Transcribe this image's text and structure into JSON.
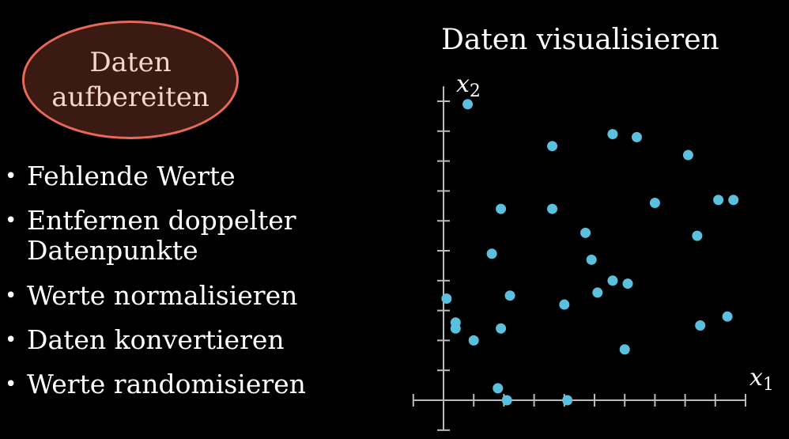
{
  "badge": {
    "line1": "Daten",
    "line2": "aufbereiten",
    "border_color": "#e8685a",
    "fill_color": "#3a1a13"
  },
  "bullets": [
    {
      "label": "Fehlende Werte"
    },
    {
      "label": "Entfernen doppelter",
      "label2": "Datenpunkte"
    },
    {
      "label": "Werte normalisieren"
    },
    {
      "label": "Daten konvertieren"
    },
    {
      "label": "Werte randomisieren"
    }
  ],
  "chart_data": {
    "type": "scatter",
    "title": "Daten visualisieren",
    "xlabel": "x1",
    "ylabel": "x2",
    "xlim": [
      -1,
      10
    ],
    "ylim": [
      -1,
      10.5
    ],
    "grid": false,
    "point_color": "#5bc0de",
    "points": [
      [
        0.8,
        9.9
      ],
      [
        3.6,
        8.5
      ],
      [
        5.6,
        8.9
      ],
      [
        6.4,
        8.8
      ],
      [
        8.1,
        8.2
      ],
      [
        1.9,
        6.4
      ],
      [
        3.6,
        6.4
      ],
      [
        7.0,
        6.6
      ],
      [
        9.1,
        6.7
      ],
      [
        9.6,
        6.7
      ],
      [
        4.7,
        5.6
      ],
      [
        8.4,
        5.5
      ],
      [
        1.6,
        4.9
      ],
      [
        4.9,
        4.7
      ],
      [
        5.6,
        4.0
      ],
      [
        6.1,
        3.9
      ],
      [
        0.1,
        3.4
      ],
      [
        2.2,
        3.5
      ],
      [
        5.1,
        3.6
      ],
      [
        4.0,
        3.2
      ],
      [
        8.5,
        2.5
      ],
      [
        9.4,
        2.8
      ],
      [
        0.4,
        2.6
      ],
      [
        0.4,
        2.4
      ],
      [
        1.9,
        2.4
      ],
      [
        1.0,
        2.0
      ],
      [
        6.0,
        1.7
      ],
      [
        1.8,
        0.4
      ],
      [
        2.1,
        0.0
      ],
      [
        4.1,
        0.0
      ]
    ]
  }
}
